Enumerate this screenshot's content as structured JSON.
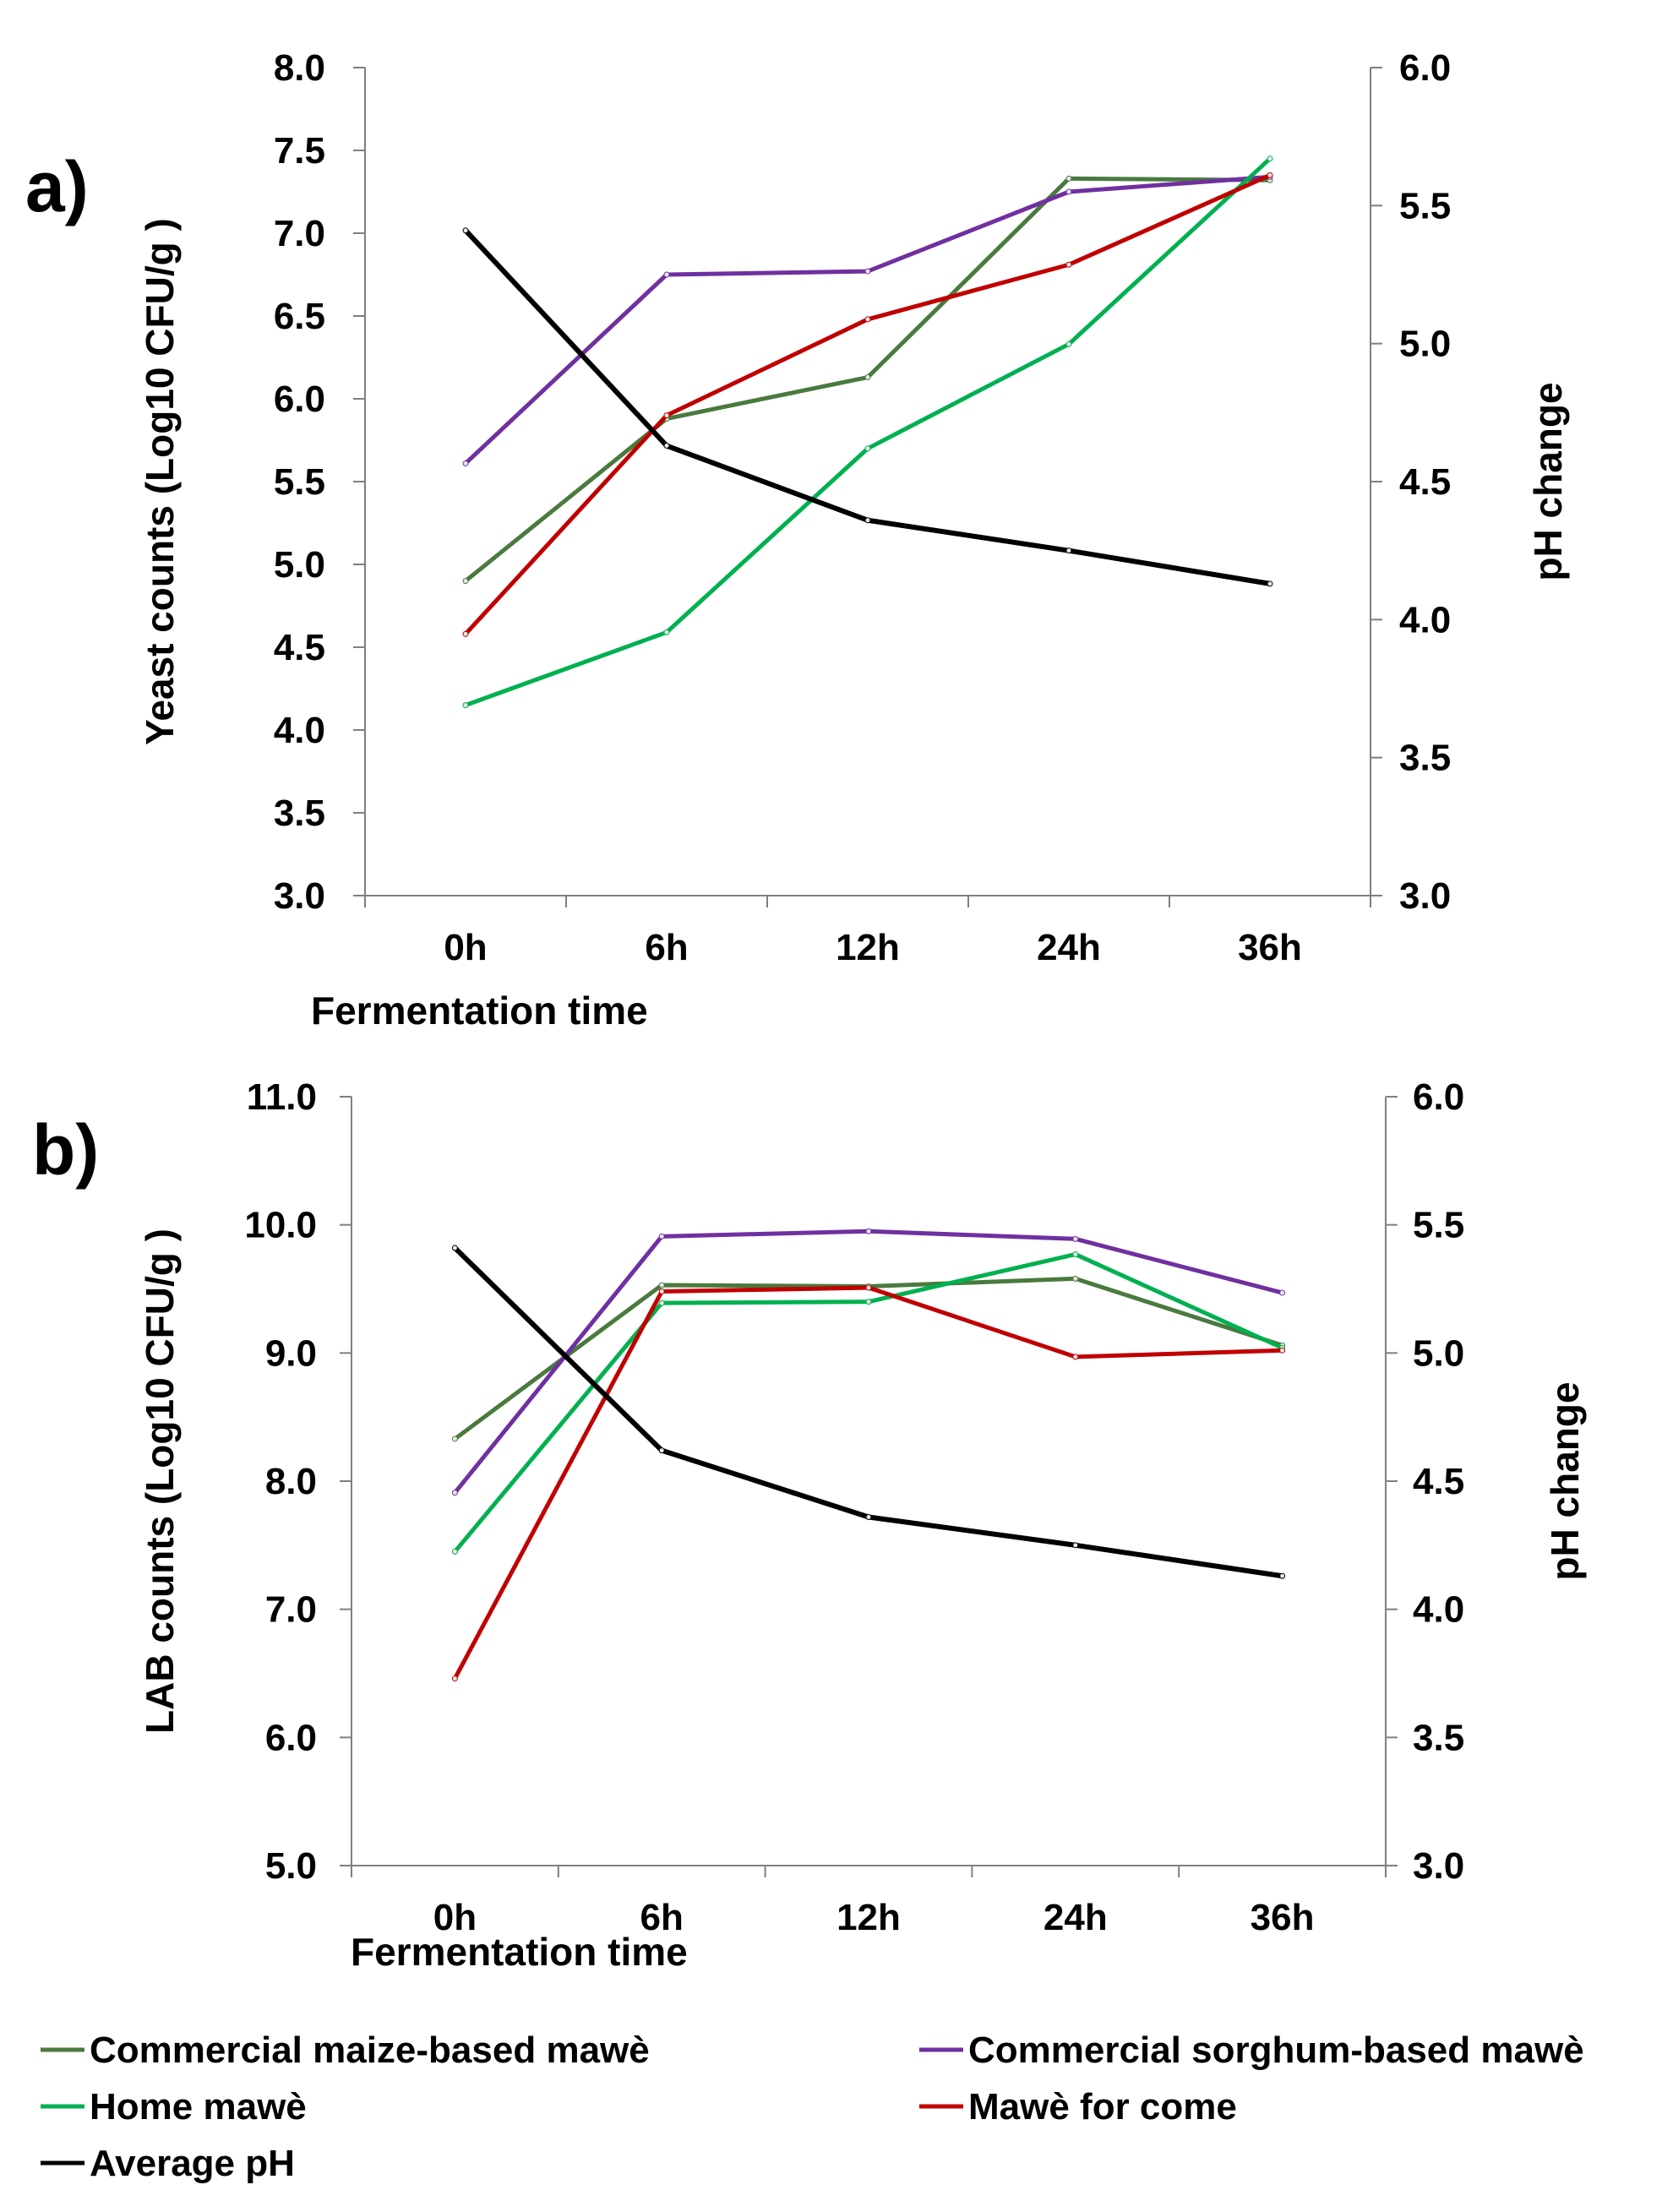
{
  "chart_data": [
    {
      "type": "line",
      "panel_label": "a)",
      "categories": [
        "0h",
        "6h",
        "12h",
        "24h",
        "36h"
      ],
      "xlabel": "Fermentation time",
      "ylabel": "Yeast counts  (Log10 CFU/g )",
      "y2label": "pH change",
      "ylim": [
        3.0,
        8.0
      ],
      "y2lim": [
        3.0,
        6.0
      ],
      "yticks": [
        "3.0",
        "3.5",
        "4.0",
        "4.5",
        "5.0",
        "5.5",
        "6.0",
        "6.5",
        "7.0",
        "7.5",
        "8.0"
      ],
      "y2ticks": [
        "3.0",
        "3.5",
        "4.0",
        "4.5",
        "5.0",
        "5.5",
        "6.0"
      ],
      "series": [
        {
          "name": "Commercial maize-based mawè",
          "color": "#4a7a3e",
          "axis": "left",
          "values": [
            4.9,
            5.88,
            6.13,
            7.33,
            7.32
          ]
        },
        {
          "name": "Commercial sorghum-based mawè",
          "color": "#7030a0",
          "axis": "left",
          "values": [
            5.61,
            6.75,
            6.77,
            7.25,
            7.34
          ]
        },
        {
          "name": "Home  mawè",
          "color": "#00b050",
          "axis": "left",
          "values": [
            4.15,
            4.59,
            5.7,
            6.33,
            7.45
          ]
        },
        {
          "name": "Mawè for come",
          "color": "#c00000",
          "axis": "left",
          "values": [
            4.58,
            5.9,
            6.48,
            6.81,
            7.35
          ]
        },
        {
          "name": "Average pH",
          "color": "#000000",
          "axis": "right",
          "values": [
            5.41,
            4.63,
            4.36,
            4.25,
            4.13
          ]
        }
      ]
    },
    {
      "type": "line",
      "panel_label": "b)",
      "categories": [
        "0h",
        "6h",
        "12h",
        "24h",
        "36h"
      ],
      "xlabel": "Fermentation time",
      "ylabel": "LAB  counts  (Log10 CFU/g )",
      "y2label": "pH change",
      "ylim": [
        5.0,
        11.0
      ],
      "y2lim": [
        3.0,
        6.0
      ],
      "yticks": [
        "5.0",
        "6.0",
        "7.0",
        "8.0",
        "9.0",
        "10.0",
        "11.0"
      ],
      "y2ticks": [
        "3.0",
        "3.5",
        "4.0",
        "4.5",
        "5.0",
        "5.5",
        "6.0"
      ],
      "series": [
        {
          "name": "Commercial maize-based mawè",
          "color": "#4a7a3e",
          "axis": "left",
          "values": [
            8.33,
            9.53,
            9.52,
            9.58,
            9.06
          ]
        },
        {
          "name": "Commercial sorghum-based mawè",
          "color": "#7030a0",
          "axis": "left",
          "values": [
            7.91,
            9.91,
            9.95,
            9.89,
            9.47
          ]
        },
        {
          "name": "Home  mawè",
          "color": "#00b050",
          "axis": "left",
          "values": [
            7.45,
            9.39,
            9.4,
            9.77,
            9.04
          ]
        },
        {
          "name": "Mawè for come",
          "color": "#c00000",
          "axis": "left",
          "values": [
            6.46,
            9.48,
            9.51,
            8.97,
            9.02
          ]
        },
        {
          "name": "Average pH",
          "color": "#000000",
          "axis": "right",
          "values": [
            5.41,
            4.62,
            4.36,
            4.25,
            4.13
          ]
        }
      ]
    }
  ],
  "legend": {
    "items": [
      {
        "label": "Commercial maize-based mawè",
        "color": "#4a7a3e"
      },
      {
        "label": "Commercial sorghum-based mawè",
        "color": "#7030a0"
      },
      {
        "label": "Home  mawè",
        "color": "#00b050"
      },
      {
        "label": "Mawè for come",
        "color": "#c00000"
      },
      {
        "label": "Average pH",
        "color": "#000000"
      }
    ]
  }
}
